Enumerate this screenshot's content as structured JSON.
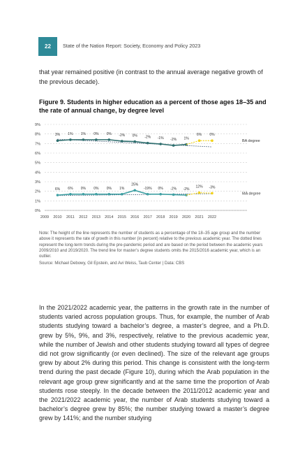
{
  "header": {
    "page_number": "22",
    "running_title": "State of the Nation Report: Society, Economy and Policy 2023"
  },
  "intro_text": "that year remained positive (in contrast to the annual average negative growth of the previous decade).",
  "figure": {
    "title": "Figure 9. Students in higher education as a percent of those ages 18–35 and the rate of annual change, by degree level",
    "note": "Note: The height of the line represents the number of students as a percentage of the 18–35 age group and the number above it represents the rate of growth in this number (in percent) relative to the previous academic year. The dotted lines represent the long-term trends during the pre-pandemic period and are based on the period between the academic years 2009/2010 and 2019/2020. The trend line for master’s degree students omits the 2015/2016 academic year, which is an outlier.",
    "source": "Source: Michael Debowy, Gil Epstein, and Avi Weiss, Taub Center | Data: CBS"
  },
  "chart_data": {
    "type": "line",
    "x": [
      2009,
      2010,
      2011,
      2012,
      2013,
      2014,
      2015,
      2016,
      2017,
      2018,
      2019,
      2020,
      2021,
      2022
    ],
    "x_tick_labels": [
      "2009",
      "2010",
      "2011",
      "2012",
      "2013",
      "2014",
      "2015",
      "2016",
      "2017",
      "2018",
      "2019",
      "2020",
      "2021",
      "2022"
    ],
    "y_ticks": [
      0,
      1,
      2,
      3,
      4,
      5,
      6,
      7,
      8,
      9
    ],
    "y_tick_labels": [
      "0%",
      "1%",
      "2%",
      "3%",
      "4%",
      "5%",
      "6%",
      "7%",
      "8%",
      "9%"
    ],
    "ylim": [
      0,
      9
    ],
    "xlim": [
      2009,
      2022
    ],
    "grid": "horizontal dashed",
    "colors": {
      "ba_line": "#2e6e6e",
      "ma_line": "#3fa0a3",
      "trend": "#2e4a68",
      "recent": "#f2d21a",
      "grid": "#c9c9c9"
    },
    "series": [
      {
        "name": "BA degree",
        "x": [
          2010,
          2011,
          2012,
          2013,
          2014,
          2015,
          2016,
          2017,
          2018,
          2019,
          2020
        ],
        "values": [
          7.3,
          7.4,
          7.4,
          7.4,
          7.4,
          7.25,
          7.2,
          7.05,
          6.95,
          6.8,
          6.9
        ],
        "change_labels": [
          "3%",
          "1%",
          "1%",
          "0%",
          "0%",
          "-2%",
          "0%",
          "-2%",
          "-1%",
          "-2%",
          "1%"
        ],
        "recent_x": [
          2020,
          2021,
          2022
        ],
        "recent_values": [
          6.9,
          7.3,
          7.3
        ],
        "recent_change_labels": [
          "6%",
          "0%"
        ],
        "trend": {
          "x": [
            2010,
            2022
          ],
          "values": [
            7.45,
            6.65
          ]
        }
      },
      {
        "name": "MA degree",
        "x": [
          2010,
          2011,
          2012,
          2013,
          2014,
          2015,
          2016,
          2017,
          2018,
          2019,
          2020
        ],
        "values": [
          1.6,
          1.7,
          1.7,
          1.7,
          1.7,
          1.7,
          2.1,
          1.7,
          1.7,
          1.65,
          1.6
        ],
        "change_labels": [
          "6%",
          "6%",
          "0%",
          "0%",
          "0%",
          "1%",
          "25%",
          "-19%",
          "0%",
          "-2%",
          "-2%"
        ],
        "recent_x": [
          2020,
          2021,
          2022
        ],
        "recent_values": [
          1.6,
          1.85,
          1.8
        ],
        "recent_change_labels": [
          "12%",
          "-3%"
        ],
        "trend": {
          "x": [
            2010,
            2022
          ],
          "values": [
            1.55,
            1.75
          ]
        }
      }
    ]
  },
  "body_paragraph": "In the 2021/2022 academic year, the patterns in the growth rate in the number of students varied across population groups. Thus, for example, the number of Arab students studying toward a bachelor’s degree, a master’s degree, and a Ph.D. grew by 5%, 9%, and 3%, respectively, relative to the previous academic year, while the number of Jewish and other students studying toward all types of degree did not grow significantly (or even declined). The size of the relevant age groups grew by about 2% during this period. This change is consistent with the long-term trend during the past decade (Figure 10), during which the Arab population in the relevant age group grew significantly and at the same time the proportion of Arab students rose steeply. In the decade between the 2011/2012 academic year and the 2021/2022 academic year, the number of Arab students studying toward a bachelor’s degree grew by 85%; the number studying toward a master’s degree grew by 141%; and the number studying"
}
